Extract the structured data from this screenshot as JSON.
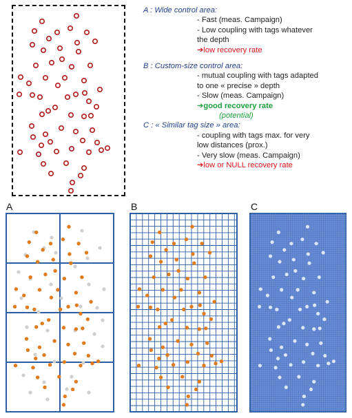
{
  "notes": {
    "a_title": "A : Wide control area:",
    "a_line1": "- Fast (meas. Campaign)",
    "a_line2": "- Low coupling with tags  whatever",
    "a_line3": "the depth",
    "a_result": "low recovery rate",
    "b_title": "B : Custom-size control area:",
    "b_line1": "- mutual coupling with tags adapted",
    "b_line2": "to one « precise » depth",
    "b_line3": "- Slow (meas. Campaign)",
    "b_result": "good recovery rate",
    "b_potential": "(potential)",
    "c_title": "C : « Similar tag size » area:",
    "c_line1": "- coupling with tags max. for very",
    "c_line2": "low distances (prox.)",
    "c_line3": "- Very slow (meas. Campaign)",
    "c_result": "low or NULL recovery rate",
    "arrow": "➔"
  },
  "panels": {
    "a_label": "A",
    "b_label": "B",
    "c_label": "C"
  },
  "colors": {
    "tag_ring": "#b01818",
    "orange": "#e07b1e",
    "grey": "#cfcfcf",
    "grid_blue": "#2e5fa3",
    "dense_blue": "#4f78c8",
    "red_text": "#e0141c",
    "green_text": "#1ca03c"
  }
}
